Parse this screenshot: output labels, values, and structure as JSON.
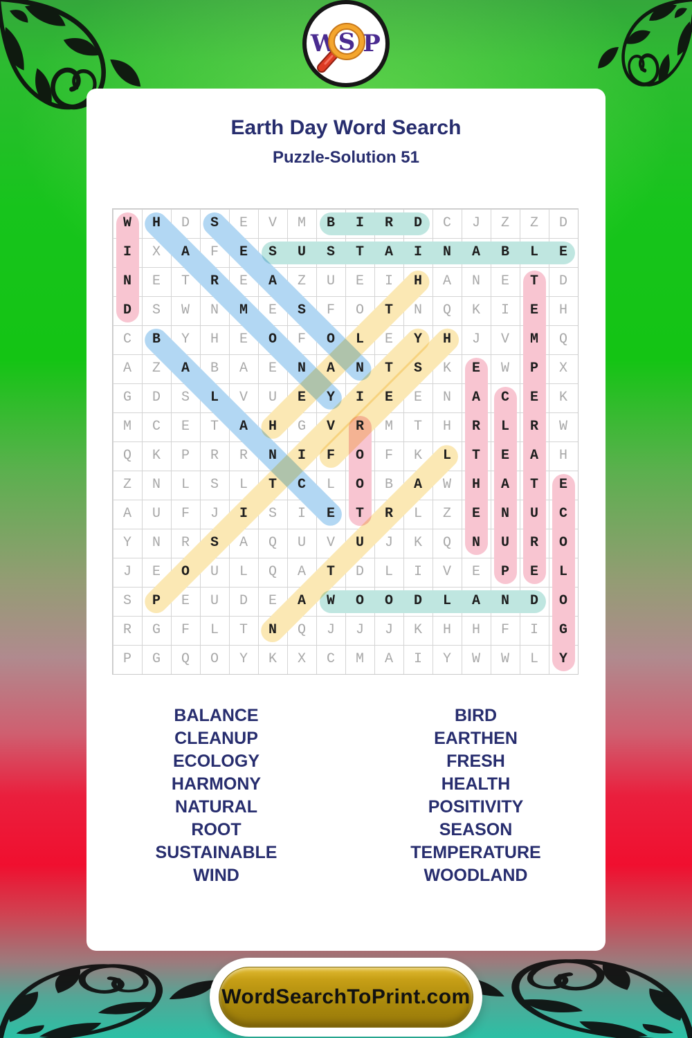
{
  "logo": {
    "letters": [
      "W",
      "S",
      "P"
    ]
  },
  "header": {
    "title": "Earth Day Word Search",
    "subtitle": "Puzzle-Solution 51"
  },
  "grid": {
    "size": 16,
    "rows": [
      "WHDSEVMBIRDCJZZD",
      "IXAFESUSTAINABLE",
      "NETREAZUEIHANETD",
      "DSWNMESFOTNQKIEH",
      "CBYHEOFOLEYHJVMQ",
      "AZABAENANTSKEWPX",
      "GDSLVUEYIEENACEK",
      "MCETAHGVRMTHRLRW",
      "QKPRRNIFOFKLTEAH",
      "ZNLSLTCLOBAWHATE",
      "AUFJISIETRLZENUC",
      "YNRSAQUVUJKQNURO",
      "JEOULQATDLIVEPEL",
      "SPEUDEAWOODLANDO",
      "RGFLTNQJJJKHHFIG",
      "PGQOYKXCMAIYWWLY"
    ]
  },
  "solution_words": [
    {
      "text": "WIND",
      "row": 1,
      "col": 1,
      "dir": "v",
      "color": "pink"
    },
    {
      "text": "HARMONY",
      "row": 1,
      "col": 2,
      "dir": "dr",
      "color": "blue"
    },
    {
      "text": "SEASON",
      "row": 1,
      "col": 4,
      "dir": "dr",
      "color": "blue"
    },
    {
      "text": "BIRD",
      "row": 1,
      "col": 8,
      "dir": "h",
      "color": "teal"
    },
    {
      "text": "SUSTAINABLE",
      "row": 2,
      "col": 6,
      "dir": "h",
      "color": "teal"
    },
    {
      "text": "TEMPERATURE",
      "row": 3,
      "col": 15,
      "dir": "v",
      "color": "pink"
    },
    {
      "text": "BALANCE",
      "row": 5,
      "col": 2,
      "dir": "dr",
      "color": "blue"
    },
    {
      "text": "EARTHEN",
      "row": 6,
      "col": 13,
      "dir": "v",
      "color": "pink"
    },
    {
      "text": "CLEANUP",
      "row": 7,
      "col": 14,
      "dir": "v",
      "color": "pink"
    },
    {
      "text": "ROOT",
      "row": 8,
      "col": 9,
      "dir": "v",
      "color": "pink"
    },
    {
      "text": "HEALTH",
      "row": 8,
      "col": 6,
      "dir": "ur",
      "color": "yellow"
    },
    {
      "text": "FRESH",
      "row": 9,
      "col": 8,
      "dir": "ur",
      "color": "yellow"
    },
    {
      "text": "POSITIVITY",
      "row": 14,
      "col": 2,
      "dir": "ur",
      "color": "yellow"
    },
    {
      "text": "NATURAL",
      "row": 15,
      "col": 6,
      "dir": "ur",
      "color": "yellow"
    },
    {
      "text": "WOODLAND",
      "row": 14,
      "col": 8,
      "dir": "h",
      "color": "teal"
    },
    {
      "text": "ECOLOGY",
      "row": 10,
      "col": 16,
      "dir": "v",
      "color": "pink"
    }
  ],
  "highlight_colors": {
    "pink": "#f8c5d1",
    "blue": "#b2d7f3",
    "teal": "#bfe6e0",
    "yellow": "#fbe8b4"
  },
  "word_lists": {
    "left": [
      "BALANCE",
      "CLEANUP",
      "ECOLOGY",
      "HARMONY",
      "NATURAL",
      "ROOT",
      "SUSTAINABLE",
      "WIND"
    ],
    "right": [
      "BIRD",
      "EARTHEN",
      "FRESH",
      "HEALTH",
      "POSITIVITY",
      "SEASON",
      "TEMPERATURE",
      "WOODLAND"
    ]
  },
  "footer": {
    "site_label": "WordSearchToPrint.com"
  },
  "theme": {
    "navy": "#272d6e",
    "purple": "#4a2b90",
    "gold": "#ab8a0c",
    "grid_line": "#d4d4d4",
    "letter_gray": "#a8a8a8",
    "letter_dark": "#1d1d1d",
    "bg_green": "#14c414",
    "bg_red": "#f00f2f",
    "bg_teal": "#2bc0a5"
  }
}
